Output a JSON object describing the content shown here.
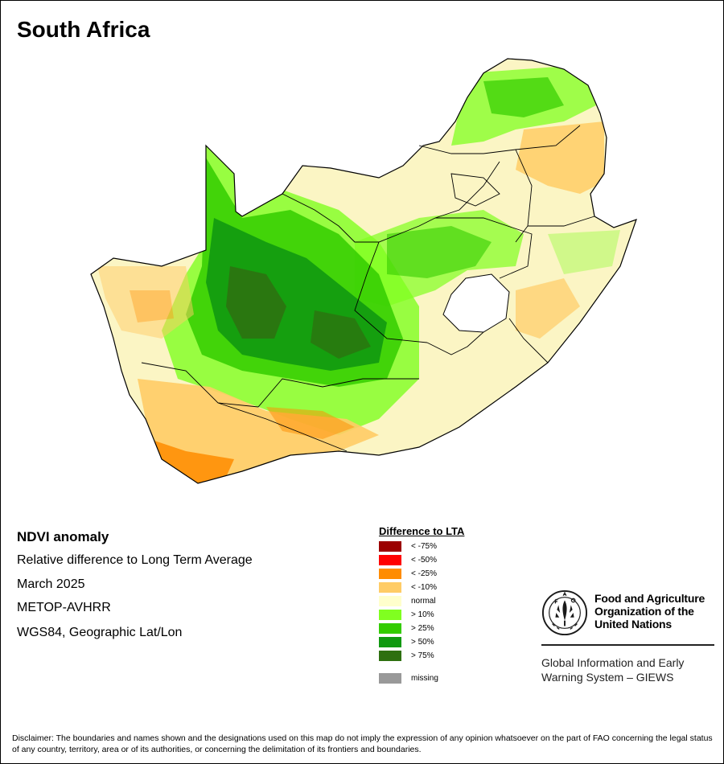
{
  "map": {
    "title": "South Africa"
  },
  "info": {
    "title": "NDVI anomaly",
    "subtitle": "Relative difference to Long Term Average",
    "date": "March 2025",
    "sensor": "METOP-AVHRR",
    "projection": "WGS84, Geographic Lat/Lon"
  },
  "legend": {
    "title": "Difference to LTA",
    "items": [
      {
        "label": "< -75%",
        "color": "#9b0000"
      },
      {
        "label": "< -50%",
        "color": "#ff0000"
      },
      {
        "label": "< -25%",
        "color": "#ff8c00"
      },
      {
        "label": "< -10%",
        "color": "#ffcc66"
      },
      {
        "label": "normal",
        "color": "#ffffcc"
      },
      {
        "label": "> 10%",
        "color": "#80ff20"
      },
      {
        "label": "> 25%",
        "color": "#33cc00"
      },
      {
        "label": "> 50%",
        "color": "#119911"
      },
      {
        "label": "> 75%",
        "color": "#2e7010"
      }
    ],
    "missing": {
      "label": "missing",
      "color": "#999999"
    }
  },
  "logo": {
    "org_name": "Food and Agriculture Organization of the United Nations",
    "system_name": "Global Information and Early Warning System – GIEWS"
  },
  "disclaimer": "Disclaimer: The boundaries and names shown and the designations used on this map do not imply the expression of any opinion whatsoever on the part of FAO concerning the legal status of any country, territory, area or of its authorities, or concerning the delimitation of its frontiers and boundaries."
}
